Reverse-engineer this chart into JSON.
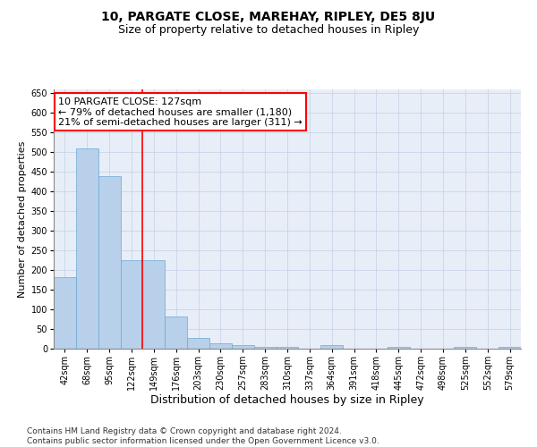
{
  "title": "10, PARGATE CLOSE, MAREHAY, RIPLEY, DE5 8JU",
  "subtitle": "Size of property relative to detached houses in Ripley",
  "xlabel": "Distribution of detached houses by size in Ripley",
  "ylabel": "Number of detached properties",
  "categories": [
    "42sqm",
    "68sqm",
    "95sqm",
    "122sqm",
    "149sqm",
    "176sqm",
    "203sqm",
    "230sqm",
    "257sqm",
    "283sqm",
    "310sqm",
    "337sqm",
    "364sqm",
    "391sqm",
    "418sqm",
    "445sqm",
    "472sqm",
    "498sqm",
    "525sqm",
    "552sqm",
    "579sqm"
  ],
  "values": [
    181,
    510,
    440,
    225,
    225,
    83,
    28,
    14,
    8,
    5,
    5,
    0,
    10,
    0,
    0,
    5,
    0,
    0,
    5,
    0,
    5
  ],
  "bar_color": "#b8d0ea",
  "bar_edge_color": "#6aaad4",
  "grid_color": "#c8d4e8",
  "background_color": "#e8eef8",
  "vline_x_index": 3.5,
  "vline_color": "red",
  "annotation_text": "10 PARGATE CLOSE: 127sqm\n← 79% of detached houses are smaller (1,180)\n21% of semi-detached houses are larger (311) →",
  "annotation_box_color": "white",
  "annotation_box_edge_color": "red",
  "ylim": [
    0,
    660
  ],
  "yticks": [
    0,
    50,
    100,
    150,
    200,
    250,
    300,
    350,
    400,
    450,
    500,
    550,
    600,
    650
  ],
  "footnote": "Contains HM Land Registry data © Crown copyright and database right 2024.\nContains public sector information licensed under the Open Government Licence v3.0.",
  "title_fontsize": 10,
  "subtitle_fontsize": 9,
  "xlabel_fontsize": 9,
  "ylabel_fontsize": 8,
  "tick_fontsize": 7,
  "annotation_fontsize": 8,
  "footnote_fontsize": 6.5
}
